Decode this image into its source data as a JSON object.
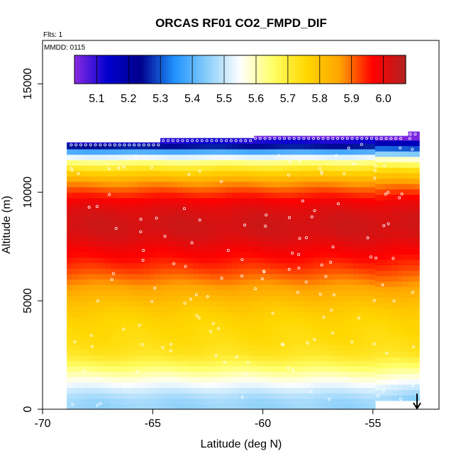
{
  "chart_data": {
    "type": "heatmap",
    "title": "ORCAS RF01 CO2_FMPD_DIF",
    "flights_note": "Flts: 1",
    "date_note": "MMDD: 0115",
    "xlabel": "Latitude (deg N)",
    "ylabel": "Altitude (m)",
    "xlim": [
      -70,
      -52
    ],
    "ylim": [
      0,
      17000
    ],
    "x_ticks": [
      "-70",
      "-65",
      "-60",
      "-55"
    ],
    "y_ticks": [
      "0",
      "5000",
      "10000",
      "15000"
    ],
    "colorbar": {
      "min": 5.03,
      "max": 6.07,
      "ticks": [
        "5.1",
        "5.2",
        "5.3",
        "5.4",
        "5.5",
        "5.6",
        "5.7",
        "5.8",
        "5.9",
        "6.0"
      ],
      "colors": [
        "#8a2be2",
        "#0000cd",
        "#00008b",
        "#1e90ff",
        "#87cefa",
        "#ffffff",
        "#ffff66",
        "#ffd700",
        "#ffa500",
        "#ff0000",
        "#b22222"
      ]
    },
    "grid": false,
    "data_extent": {
      "lat_range": [
        -68.9,
        -52.9
      ],
      "alt_range": [
        0,
        12700
      ]
    },
    "profile": [
      {
        "alt": 0,
        "value": 5.46
      },
      {
        "alt": 500,
        "value": 5.47
      },
      {
        "alt": 1000,
        "value": 5.52
      },
      {
        "alt": 1500,
        "value": 5.59
      },
      {
        "alt": 2000,
        "value": 5.66
      },
      {
        "alt": 2500,
        "value": 5.72
      },
      {
        "alt": 3000,
        "value": 5.74
      },
      {
        "alt": 3500,
        "value": 5.75
      },
      {
        "alt": 4000,
        "value": 5.76
      },
      {
        "alt": 4500,
        "value": 5.78
      },
      {
        "alt": 5000,
        "value": 5.81
      },
      {
        "alt": 5500,
        "value": 5.85
      },
      {
        "alt": 6000,
        "value": 5.89
      },
      {
        "alt": 6500,
        "value": 5.93
      },
      {
        "alt": 7000,
        "value": 5.96
      },
      {
        "alt": 7500,
        "value": 5.99
      },
      {
        "alt": 8000,
        "value": 6.02
      },
      {
        "alt": 8500,
        "value": 6.03
      },
      {
        "alt": 9000,
        "value": 6.02
      },
      {
        "alt": 9500,
        "value": 5.99
      },
      {
        "alt": 10000,
        "value": 5.93
      },
      {
        "alt": 10500,
        "value": 5.86
      },
      {
        "alt": 11000,
        "value": 5.75
      },
      {
        "alt": 11500,
        "value": 5.6
      },
      {
        "alt": 12000,
        "value": 5.32
      },
      {
        "alt": 12500,
        "value": 5.05
      }
    ]
  }
}
